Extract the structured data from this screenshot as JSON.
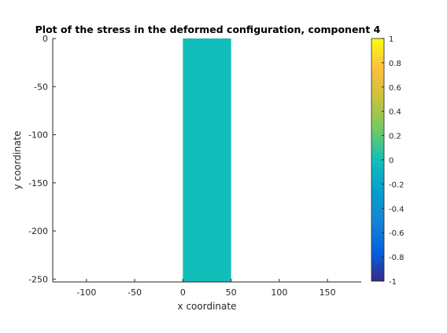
{
  "chart_data": {
    "type": "heatmap",
    "title": "Plot of the stress in the deformed configuration, component 4",
    "xlabel": "x coordinate",
    "ylabel": "y coordinate",
    "xlim": [
      -135,
      185
    ],
    "ylim": [
      -253,
      0
    ],
    "xticks": [
      -100,
      -50,
      0,
      50,
      100,
      150
    ],
    "yticks": [
      0,
      -50,
      -100,
      -150,
      -200,
      -250
    ],
    "grid": false,
    "region": {
      "x": [
        0,
        50
      ],
      "y": [
        -253,
        0
      ],
      "value": 0
    },
    "colorbar": {
      "colormap": "parula",
      "clim": [
        -1,
        1
      ],
      "ticks": [
        1,
        0.8,
        0.6,
        0.4,
        0.2,
        0,
        -0.2,
        -0.4,
        -0.6,
        -0.8,
        -1
      ],
      "placement": "right"
    }
  }
}
